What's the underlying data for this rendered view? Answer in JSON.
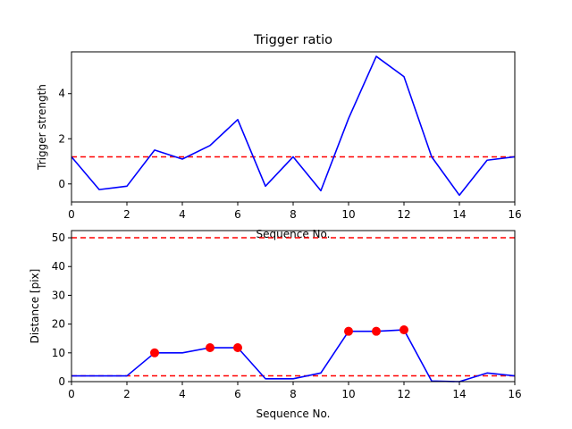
{
  "chart_data": [
    {
      "type": "line",
      "title": "Trigger ratio",
      "xlabel": "Sequence No.",
      "ylabel": "Trigger strength",
      "xlim": [
        0,
        16
      ],
      "ylim": [
        -0.8,
        5.85
      ],
      "xticks": [
        0,
        2,
        4,
        6,
        8,
        10,
        12,
        14,
        16
      ],
      "yticks": [
        0,
        2,
        4
      ],
      "grid": false,
      "colors": {
        "series": "#0000ff",
        "reference": "#ff0000"
      },
      "series": [
        {
          "x": [
            0,
            1,
            2,
            3,
            4,
            5,
            6,
            7,
            8,
            9,
            10,
            11,
            12,
            13,
            14,
            15,
            16
          ],
          "values": [
            1.2,
            -0.25,
            -0.1,
            1.5,
            1.1,
            1.7,
            2.85,
            -0.1,
            1.2,
            -0.3,
            2.9,
            5.65,
            4.75,
            1.2,
            -0.5,
            1.05,
            1.2
          ]
        }
      ],
      "reference_lines": [
        {
          "y": 1.2,
          "style": "dashed"
        }
      ]
    },
    {
      "type": "line",
      "title": "",
      "xlabel": "Sequence No.",
      "ylabel": "Distance [pix]",
      "xlim": [
        0,
        16
      ],
      "ylim": [
        0,
        52.5
      ],
      "xticks": [
        0,
        2,
        4,
        6,
        8,
        10,
        12,
        14,
        16
      ],
      "yticks": [
        0,
        10,
        20,
        30,
        40,
        50
      ],
      "grid": false,
      "colors": {
        "series": "#0000ff",
        "reference": "#ff0000",
        "markers": "#ff0000"
      },
      "series": [
        {
          "x": [
            0,
            1,
            2,
            3,
            4,
            5,
            6,
            7,
            8,
            9,
            10,
            11,
            12,
            13,
            14,
            15,
            16
          ],
          "values": [
            2,
            2,
            2,
            10,
            10,
            11.8,
            11.8,
            1,
            1,
            3,
            17.5,
            17.5,
            18,
            0.2,
            0,
            3,
            2
          ]
        }
      ],
      "highlighted_points": [
        {
          "x": 3,
          "y": 10
        },
        {
          "x": 5,
          "y": 11.8
        },
        {
          "x": 6,
          "y": 11.8
        },
        {
          "x": 10,
          "y": 17.5
        },
        {
          "x": 11,
          "y": 17.5
        },
        {
          "x": 12,
          "y": 18
        }
      ],
      "reference_lines": [
        {
          "y": 50,
          "style": "dashed"
        },
        {
          "y": 2,
          "style": "dashed"
        }
      ]
    }
  ]
}
